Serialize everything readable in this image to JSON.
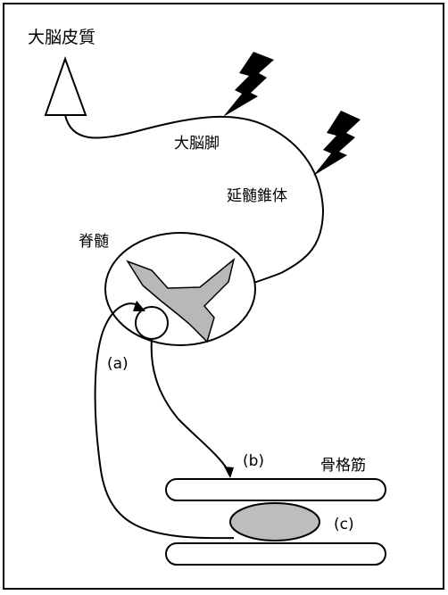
{
  "labels": {
    "cerebral_cortex": "大脳皮質",
    "cerebral_peduncle": "大脳脚",
    "medullary_pyramid": "延髄錐体",
    "spinal_cord": "脊髄",
    "skeletal_muscle": "骨格筋",
    "a": "(a)",
    "b": "(b)",
    "c": "(c)"
  },
  "colors": {
    "line": "#000000",
    "gray_matter": "#b8b8b8",
    "muscle_spindle": "#bdbdbd",
    "background": "#ffffff"
  },
  "icons": {
    "neuron_body": "triangle",
    "lesion": "lightning-bolt"
  }
}
